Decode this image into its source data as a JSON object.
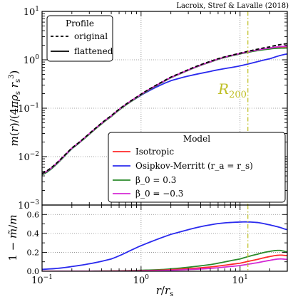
{
  "credit": "Lacroix, Stref & Lavalle (2018)",
  "colors": {
    "red": "#ff2a2a",
    "blue": "#2a2aee",
    "green": "#2a8a2a",
    "magenta": "#d42ad4",
    "black": "#000000",
    "r200_line": "#bfbf26"
  },
  "chart_data": [
    {
      "type": "line",
      "panel": "top",
      "xscale": "log",
      "yscale": "log",
      "xlim": [
        0.1,
        30
      ],
      "ylim": [
        0.001,
        10
      ],
      "xlabel": "",
      "ylabel": "m(r)/(4πρ_s r_s³)",
      "y_tick_labels": [
        "10^-3",
        "10^-2",
        "10^-1",
        "10^0",
        "10^1"
      ],
      "annotation": "R200",
      "r200_x": 12,
      "grid": "dotted",
      "legend_profile": {
        "title": "Profile",
        "entries": [
          "original",
          "flattened"
        ],
        "placement": "top-left"
      },
      "legend_model": {
        "title": "Model",
        "entries": [
          "Isotropic",
          "Osipkov-Merritt (r_a = r_s)",
          "β_0 = 0.3",
          "β_0 = −0.3"
        ],
        "placement": "lower-right"
      },
      "x": [
        0.1,
        0.2,
        0.5,
        1,
        2,
        5,
        10,
        20,
        30
      ],
      "series": [
        {
          "name": "Isotropic",
          "color": "red",
          "dash": "solid",
          "values": [
            0.0044,
            0.015,
            0.069,
            0.193,
            0.432,
            0.907,
            1.35,
            1.72,
            1.87
          ]
        },
        {
          "name": "Osipkov-Merritt (r_a = r_s)",
          "color": "blue",
          "dash": "solid",
          "values": [
            0.0042,
            0.0146,
            0.068,
            0.185,
            0.37,
            0.574,
            0.75,
            1.05,
            1.32
          ]
        },
        {
          "name": "β_0 = 0.3",
          "color": "green",
          "dash": "solid",
          "values": [
            0.0042,
            0.0146,
            0.067,
            0.188,
            0.426,
            0.894,
            1.32,
            1.67,
            1.75
          ]
        },
        {
          "name": "β_0 = −0.3",
          "color": "magenta",
          "dash": "solid",
          "values": [
            0.0044,
            0.015,
            0.069,
            0.193,
            0.432,
            0.907,
            1.35,
            1.75,
            1.91
          ]
        },
        {
          "name": "original",
          "color": "black",
          "dash": "dashed",
          "values": [
            0.0045,
            0.0151,
            0.07,
            0.195,
            0.44,
            0.925,
            1.37,
            1.85,
            2.15
          ]
        }
      ]
    },
    {
      "type": "line",
      "panel": "bottom",
      "xscale": "log",
      "yscale": "linear",
      "xlim": [
        0.1,
        30
      ],
      "ylim": [
        0,
        0.7
      ],
      "xlabel": "r/r_s",
      "ylabel": "1 − m̃/m",
      "x_tick_labels": [
        "10^-1",
        "10^0",
        "10^1"
      ],
      "y_ticks": [
        0.0,
        0.2,
        0.4,
        0.6
      ],
      "y_tick_labels": [
        "0.0",
        "0.2",
        "0.4",
        "0.6"
      ],
      "x": [
        0.1,
        0.2,
        0.5,
        1,
        2,
        5,
        10,
        15,
        20,
        25,
        30
      ],
      "series": [
        {
          "name": "Osipkov-Merritt (r_a = r_s)",
          "color": "blue",
          "values": [
            0.02,
            0.05,
            0.13,
            0.27,
            0.39,
            0.49,
            0.52,
            0.515,
            0.49,
            0.465,
            0.44
          ]
        },
        {
          "name": "β_0 = 0.3",
          "color": "green",
          "values": [
            0.0,
            0.0,
            0.003,
            0.01,
            0.025,
            0.07,
            0.13,
            0.18,
            0.21,
            0.22,
            0.205
          ]
        },
        {
          "name": "Isotropic",
          "color": "red",
          "values": [
            0.0,
            0.0,
            0.002,
            0.006,
            0.016,
            0.045,
            0.085,
            0.125,
            0.155,
            0.17,
            0.165
          ]
        },
        {
          "name": "β_0 = −0.3",
          "color": "magenta",
          "values": [
            0.0,
            0.0,
            0.0,
            0.003,
            0.01,
            0.03,
            0.06,
            0.09,
            0.115,
            0.13,
            0.125
          ]
        }
      ]
    }
  ]
}
